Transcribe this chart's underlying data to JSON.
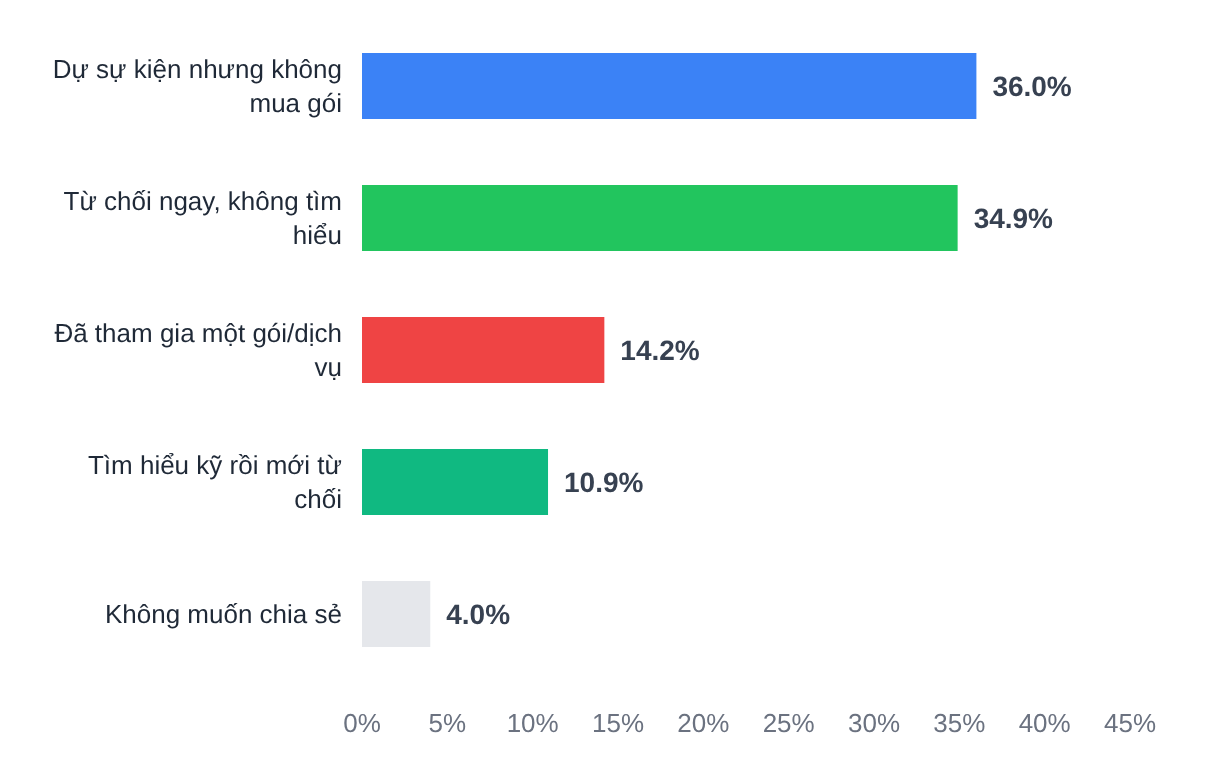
{
  "chart_data": {
    "type": "bar",
    "orientation": "horizontal",
    "categories": [
      "Dự sự kiện nhưng không mua gói",
      "Từ chối ngay, không tìm hiểu",
      "Đã tham gia một gói/dịch vụ",
      "Tìm hiểu kỹ rồi mới từ chối",
      "Không muốn chia sẻ"
    ],
    "values": [
      36.0,
      34.9,
      14.2,
      10.9,
      4.0
    ],
    "colors": [
      "#3b82f6",
      "#22c55e",
      "#ef4444",
      "#10b981",
      "#e5e7eb"
    ],
    "value_labels": [
      "36.0%",
      "34.9%",
      "14.2%",
      "10.9%",
      "4.0%"
    ],
    "xlim": [
      0,
      45
    ],
    "xticks": [
      {
        "value": 0,
        "label": "0%"
      },
      {
        "value": 5,
        "label": "5%"
      },
      {
        "value": 10,
        "label": "10%"
      },
      {
        "value": 15,
        "label": "15%"
      },
      {
        "value": 20,
        "label": "20%"
      },
      {
        "value": 25,
        "label": "25%"
      },
      {
        "value": 30,
        "label": "30%"
      },
      {
        "value": 35,
        "label": "35%"
      },
      {
        "value": 40,
        "label": "40%"
      },
      {
        "value": 45,
        "label": "45%"
      }
    ],
    "grid": false
  }
}
